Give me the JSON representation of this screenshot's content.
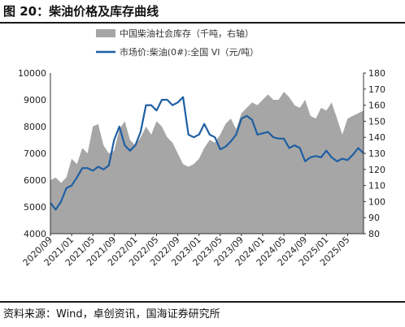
{
  "figure": {
    "title": "图 20：柴油价格及库存曲线",
    "source": "资料来源：Wind，卓创资讯，国海证券研究所"
  },
  "colors": {
    "inventory_fill": "#a6a6a6",
    "price_line": "#1f5fa3",
    "rule": "#1a1a1a"
  },
  "chart_data": {
    "type": "area+line",
    "legend_position": "top",
    "grid": false,
    "x_tick_labels": [
      "2020/09",
      "2021/01",
      "2021/05",
      "2021/09",
      "2022/01",
      "2022/05",
      "2022/09",
      "2023/01",
      "2023/05",
      "2023/09",
      "2024/01",
      "2024/05",
      "2024/09",
      "2025/01",
      "2025/05"
    ],
    "left_axis": {
      "ylim": [
        4000,
        10000
      ],
      "ticks": [
        4000,
        5000,
        6000,
        7000,
        8000,
        9000,
        10000
      ],
      "tick_labels": [
        "4000",
        "5000",
        "6000",
        "7000",
        "8000",
        "9000",
        "10000"
      ]
    },
    "right_axis": {
      "ylim": [
        80,
        180
      ],
      "ticks": [
        80,
        90,
        100,
        110,
        120,
        130,
        140,
        150,
        160,
        170,
        180
      ],
      "tick_labels": [
        "80",
        "90",
        "100",
        "110",
        "120",
        "130",
        "140",
        "150",
        "160",
        "170",
        "180"
      ]
    },
    "series": [
      {
        "name": "中国柴油社会库存（千吨，右轴）",
        "type": "area",
        "axis": "left",
        "x": [
          "2020/09",
          "2020/10",
          "2020/11",
          "2020/12",
          "2021/01",
          "2021/02",
          "2021/03",
          "2021/04",
          "2021/05",
          "2021/06",
          "2021/07",
          "2021/08",
          "2021/09",
          "2021/10",
          "2021/11",
          "2021/12",
          "2022/01",
          "2022/02",
          "2022/03",
          "2022/04",
          "2022/05",
          "2022/06",
          "2022/07",
          "2022/08",
          "2022/09",
          "2022/10",
          "2022/11",
          "2022/12",
          "2023/01",
          "2023/02",
          "2023/03",
          "2023/04",
          "2023/05",
          "2023/06",
          "2023/07",
          "2023/08",
          "2023/09",
          "2023/10",
          "2023/11",
          "2023/12",
          "2024/01",
          "2024/02",
          "2024/03",
          "2024/04",
          "2024/05",
          "2024/06",
          "2024/07",
          "2024/08",
          "2024/09",
          "2024/10",
          "2024/11",
          "2024/12",
          "2025/01",
          "2025/02",
          "2025/03",
          "2025/04",
          "2025/05",
          "2025/06",
          "2025/07",
          "2025/08"
        ],
        "values": [
          6000,
          6100,
          5900,
          6100,
          6800,
          6600,
          7200,
          7000,
          8000,
          8100,
          7300,
          7000,
          7100,
          7900,
          8200,
          7500,
          7300,
          7600,
          8000,
          7700,
          8200,
          8000,
          7600,
          7400,
          7000,
          6600,
          6500,
          6600,
          6800,
          7200,
          7500,
          7400,
          7700,
          8100,
          8300,
          7900,
          8500,
          8700,
          8900,
          8800,
          9000,
          9200,
          9000,
          9000,
          9300,
          9100,
          8800,
          8700,
          9000,
          8400,
          8300,
          8700,
          8600,
          8900,
          8300,
          7700,
          8300,
          8400,
          8500,
          8600
        ]
      },
      {
        "name": "市场价:柴油(0#):全国 VI（元/吨）",
        "type": "line",
        "axis": "left",
        "x": [
          "2020/09",
          "2020/10",
          "2020/11",
          "2020/12",
          "2021/01",
          "2021/02",
          "2021/03",
          "2021/04",
          "2021/05",
          "2021/06",
          "2021/07",
          "2021/08",
          "2021/09",
          "2021/10",
          "2021/11",
          "2021/12",
          "2022/01",
          "2022/02",
          "2022/03",
          "2022/04",
          "2022/05",
          "2022/06",
          "2022/07",
          "2022/08",
          "2022/09",
          "2022/10",
          "2022/11",
          "2022/12",
          "2023/01",
          "2023/02",
          "2023/03",
          "2023/04",
          "2023/05",
          "2023/06",
          "2023/07",
          "2023/08",
          "2023/09",
          "2023/10",
          "2023/11",
          "2023/12",
          "2024/01",
          "2024/02",
          "2024/03",
          "2024/04",
          "2024/05",
          "2024/06",
          "2024/07",
          "2024/08",
          "2024/09",
          "2024/10",
          "2024/11",
          "2024/12",
          "2025/01",
          "2025/02",
          "2025/03",
          "2025/04",
          "2025/05",
          "2025/06",
          "2025/07",
          "2025/08"
        ],
        "values": [
          5150,
          4900,
          5200,
          5700,
          5800,
          6100,
          6450,
          6450,
          6350,
          6500,
          6400,
          6550,
          7500,
          8000,
          7300,
          7100,
          7300,
          7800,
          8800,
          8800,
          8600,
          9000,
          9000,
          8800,
          8900,
          9100,
          7700,
          7600,
          7700,
          8100,
          7700,
          7600,
          7150,
          7250,
          7450,
          7700,
          8300,
          8400,
          8250,
          7700,
          7750,
          7800,
          7600,
          7550,
          7550,
          7200,
          7300,
          7200,
          6700,
          6850,
          6900,
          6850,
          7100,
          6850,
          6700,
          6800,
          6750,
          6950,
          7200,
          7000
        ]
      }
    ]
  }
}
